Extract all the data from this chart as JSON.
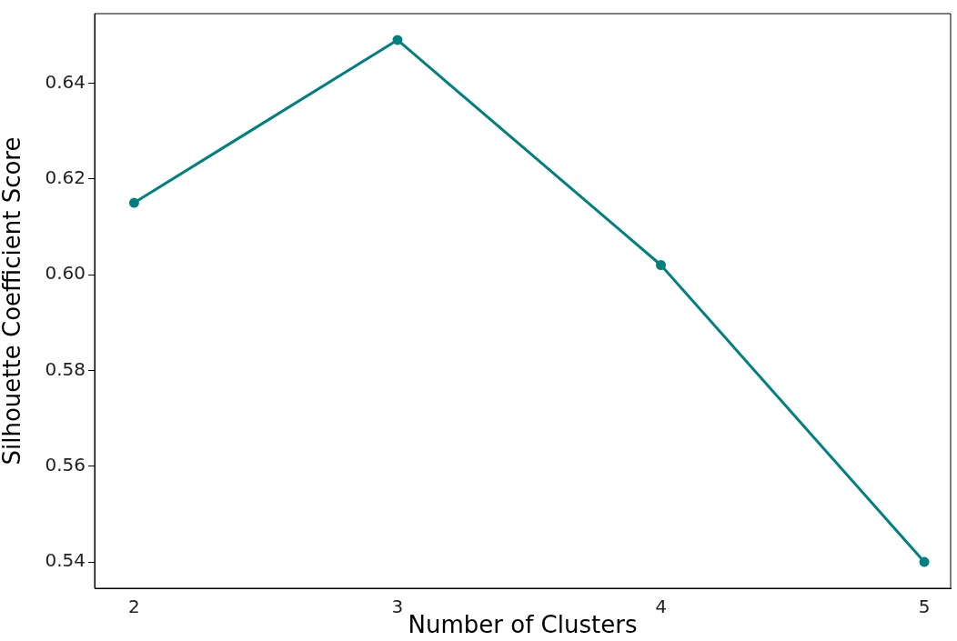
{
  "chart_data": {
    "type": "line",
    "xlabel": "Number of Clusters",
    "ylabel": "Silhouette Coefficient Score",
    "x": [
      2,
      3,
      4,
      5
    ],
    "series": [
      {
        "color": "#008080",
        "values": [
          0.615,
          0.649,
          0.602,
          0.54
        ]
      }
    ],
    "xlim": [
      1.85,
      5.1
    ],
    "xticks": [
      2,
      3,
      4,
      5
    ],
    "ylim": [
      0.5345,
      0.6545
    ],
    "yticks": [
      {
        "value": 0.54,
        "label": "0.54"
      },
      {
        "value": 0.56,
        "label": "0.56"
      },
      {
        "value": 0.58,
        "label": "0.58"
      },
      {
        "value": 0.6,
        "label": "0.60"
      },
      {
        "value": 0.62,
        "label": "0.62"
      },
      {
        "value": 0.64,
        "label": "0.64"
      }
    ],
    "marker": "circle",
    "line_style": "solid",
    "grid": false,
    "legend": false
  }
}
